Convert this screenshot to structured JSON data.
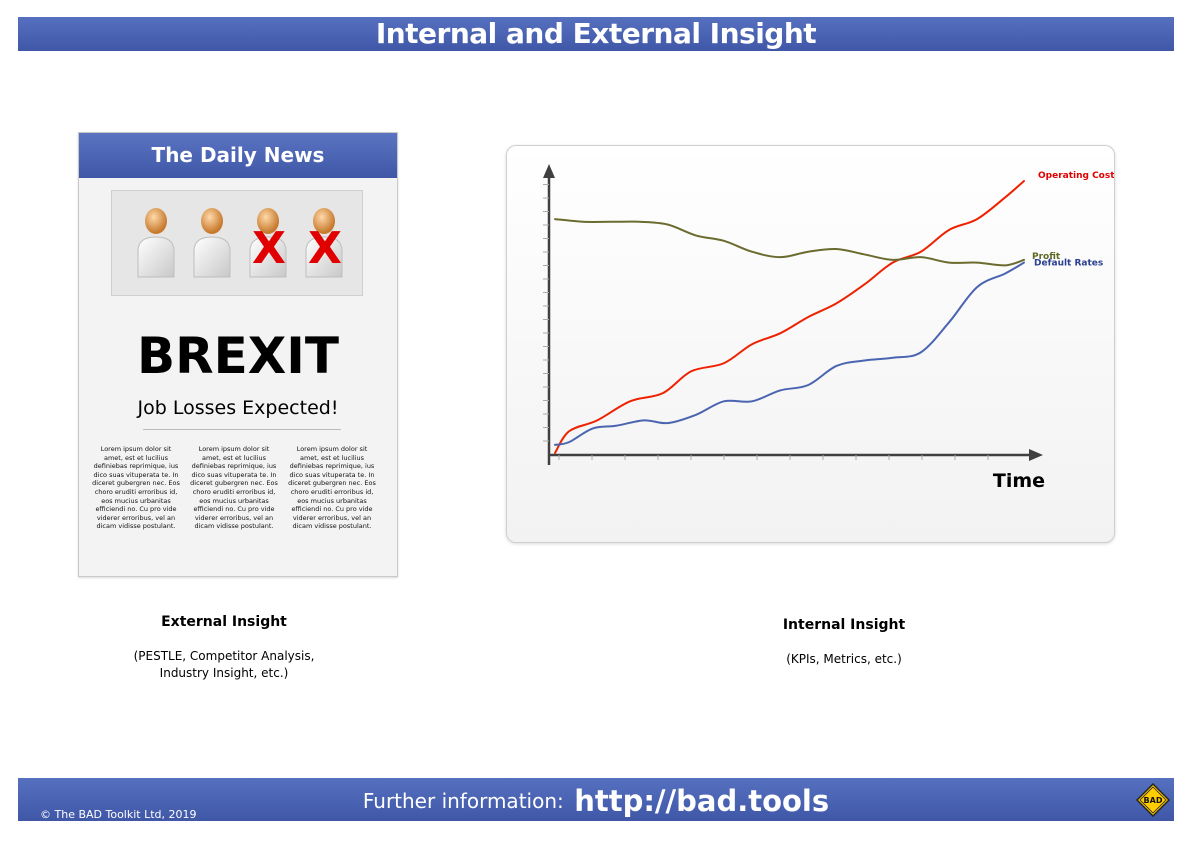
{
  "page": {
    "title": "Internal and External Insight"
  },
  "newspaper": {
    "masthead": "The Daily News",
    "headline": "BREXIT",
    "subheadline": "Job Losses Expected!",
    "columns": [
      "Lorem ipsum dolor sit amet, est et lucilius definiebas reprimique, ius dico suas vituperata te. In diceret gubergren nec. Eos choro eruditi erroribus id, eos mucius urbanitas efficiendi no. Cu pro vide viderer erroribus, vel an dicam vidisse postulant.",
      "Lorem ipsum dolor sit amet, est et lucilius definiebas reprimique, ius dico suas vituperata te. In diceret gubergren nec. Eos choro eruditi erroribus id, eos mucius urbanitas efficiendi no. Cu pro vide viderer erroribus, vel an dicam vidisse postulant.",
      "Lorem ipsum dolor sit amet, est et lucilius definiebas reprimique, ius dico suas vituperata te. In diceret gubergren nec. Eos choro eruditi erroribus id, eos mucius urbanitas efficiendi no. Cu pro vide viderer erroribus, vel an dicam vidisse postulant."
    ],
    "people": [
      {
        "crossed": false
      },
      {
        "crossed": false
      },
      {
        "crossed": true,
        "mark": "X"
      },
      {
        "crossed": true,
        "mark": "X"
      }
    ]
  },
  "external": {
    "title": "External Insight",
    "subtitle_line1": "(PESTLE, Competitor Analysis,",
    "subtitle_line2": "Industry Insight, etc.)"
  },
  "internal": {
    "title": "Internal Insight",
    "subtitle": "(KPIs, Metrics, etc.)"
  },
  "chart_data": {
    "type": "line",
    "xlabel": "Time",
    "ylabel": "",
    "grid": false,
    "legend": "inline labels at line ends",
    "xlim": [
      0,
      10
    ],
    "ylim": [
      0,
      100
    ],
    "series": [
      {
        "name": "Operating Costs",
        "color": "#ee2200",
        "label_color": "#e00000",
        "x": [
          0,
          0.3,
          0.9,
          1.6,
          2.3,
          2.9,
          3.6,
          4.2,
          4.8,
          5.4,
          6.0,
          6.6,
          7.2,
          7.8,
          8.4,
          9.0,
          9.6,
          10
        ],
        "y": [
          0,
          8,
          12,
          19,
          22,
          30,
          33,
          40,
          44,
          50,
          55,
          62,
          70,
          74,
          82,
          86,
          94,
          100
        ]
      },
      {
        "name": "Profit",
        "color": "#6b6b30",
        "label_color": "#5d6a25",
        "x": [
          0,
          0.6,
          1.2,
          1.8,
          2.4,
          3.0,
          3.6,
          4.2,
          4.8,
          5.4,
          6.0,
          6.6,
          7.2,
          7.8,
          8.4,
          9.0,
          9.6,
          10
        ],
        "y": [
          86,
          85,
          85,
          85,
          84,
          80,
          78,
          74,
          72,
          74,
          75,
          73,
          71,
          72,
          70,
          70,
          69,
          71
        ]
      },
      {
        "name": "Default Rates",
        "color": "#4a64b0",
        "label_color": "#2a3f8f",
        "x": [
          0,
          0.3,
          0.8,
          1.3,
          1.9,
          2.4,
          3.0,
          3.6,
          4.2,
          4.8,
          5.4,
          6.0,
          6.6,
          7.2,
          7.8,
          8.4,
          9.0,
          9.6,
          10
        ],
        "y": [
          3,
          4,
          9,
          10,
          12,
          11,
          14,
          19,
          19,
          23,
          25,
          32,
          34,
          35,
          37,
          48,
          61,
          66,
          70
        ]
      }
    ]
  },
  "footer": {
    "copyright": "© The BAD Toolkit Ltd, 2019",
    "further_label": "Further information:",
    "url": "http://bad.tools",
    "logo_text": "BAD"
  }
}
